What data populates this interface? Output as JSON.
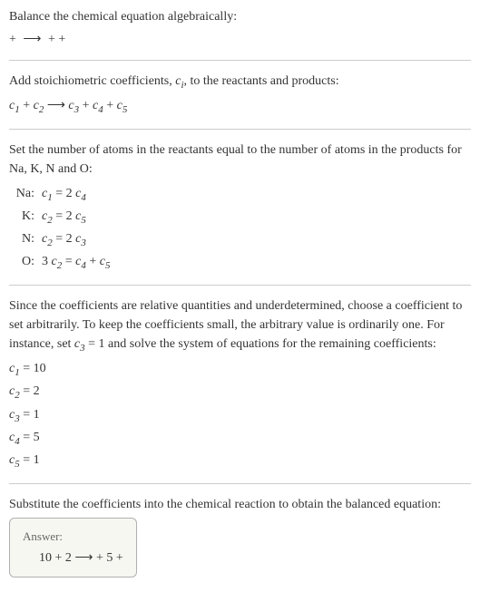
{
  "colors": {
    "text": "#333333",
    "divider": "#cccccc",
    "answer_bg": "#f7f7f2",
    "answer_border": "#b0b0b0",
    "answer_label": "#666666",
    "background": "#ffffff"
  },
  "fonts": {
    "body_family": "Georgia, 'Times New Roman', serif",
    "body_size": 14,
    "sub_size": 11,
    "answer_label_size": 13
  },
  "intro": {
    "line1": "Balance the chemical equation algebraically:",
    "reaction_lhs": " + ",
    "arrow": "⟶",
    "reaction_rhs": " +  + "
  },
  "stoich": {
    "text_pre": "Add stoichiometric coefficients, ",
    "ci": "c",
    "ci_sub": "i",
    "text_post": ", to the reactants and products:",
    "eq_parts": {
      "c1": "c",
      "s1": "1",
      "plus1": " + ",
      "c2": "c",
      "s2": "2",
      "arrow": " ⟶ ",
      "c3": "c",
      "s3": "3",
      "plus2": " + ",
      "c4": "c",
      "s4": "4",
      "plus3": " + ",
      "c5": "c",
      "s5": "5"
    }
  },
  "atoms": {
    "intro": "Set the number of atoms in the reactants equal to the number of atoms in the products for Na, K, N and O:",
    "rows": [
      {
        "label": "Na:",
        "lhs_c": "c",
        "lhs_s": "1",
        "eq": " = 2 ",
        "rhs_c": "c",
        "rhs_s": "4"
      },
      {
        "label": "K:",
        "lhs_c": "c",
        "lhs_s": "2",
        "eq": " = 2 ",
        "rhs_c": "c",
        "rhs_s": "5"
      },
      {
        "label": "N:",
        "lhs_c": "c",
        "lhs_s": "2",
        "eq": " = 2 ",
        "rhs_c": "c",
        "rhs_s": "3"
      },
      {
        "label": "O:",
        "lhs_pre": "3 ",
        "lhs_c": "c",
        "lhs_s": "2",
        "eq": " = ",
        "rhs_c": "c",
        "rhs_s": "4",
        "plus": " + ",
        "rhs2_c": "c",
        "rhs2_s": "5"
      }
    ]
  },
  "solve": {
    "text1": "Since the coefficients are relative quantities and underdetermined, choose a coefficient to set arbitrarily. To keep the coefficients small, the arbitrary value is ordinarily one. For instance, set ",
    "set_c": "c",
    "set_s": "3",
    "set_val": " = 1",
    "text2": " and solve the system of equations for the remaining coefficients:",
    "coefs": [
      {
        "c": "c",
        "s": "1",
        "val": " = 10"
      },
      {
        "c": "c",
        "s": "2",
        "val": " = 2"
      },
      {
        "c": "c",
        "s": "3",
        "val": " = 1"
      },
      {
        "c": "c",
        "s": "4",
        "val": " = 5"
      },
      {
        "c": "c",
        "s": "5",
        "val": " = 1"
      }
    ]
  },
  "substitute": {
    "text": "Substitute the coefficients into the chemical reaction to obtain the balanced equation:"
  },
  "answer": {
    "label": "Answer:",
    "lhs": "10  + 2 ",
    "arrow": " ⟶ ",
    "rhs": " + 5  + "
  }
}
